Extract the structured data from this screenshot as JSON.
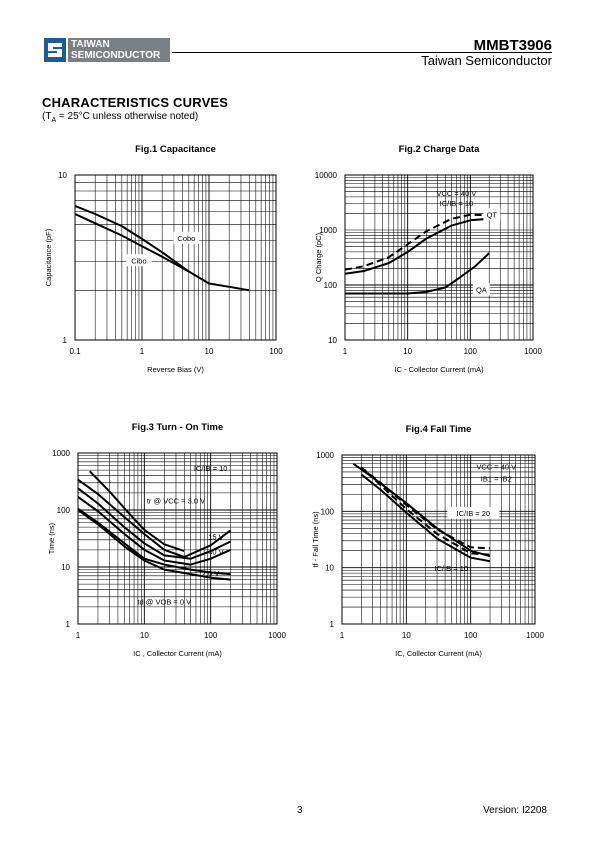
{
  "header": {
    "logo_line1": "TAIWAN",
    "logo_line2": "SEMICONDUCTOR",
    "part_number": "MMBT3906",
    "company": "Taiwan Semiconductor"
  },
  "section": {
    "title": "CHARACTERISTICS CURVES",
    "conditions_prefix": "(T",
    "conditions_sub": "A",
    "conditions_suffix": " = 25°C unless otherwise noted)"
  },
  "footer": {
    "page_number": "3",
    "version": "Version: I2208"
  },
  "chart_data": [
    {
      "id": "fig1",
      "type": "line",
      "title": "Fig.1 Capacitance",
      "xlabel": "Reverse Bias (V)",
      "ylabel": "Capacitance (pF)",
      "xscale": "log",
      "yscale": "log",
      "xlim": [
        0.1,
        100
      ],
      "ylim": [
        1,
        10
      ],
      "xticks": [
        0.1,
        1,
        10,
        100
      ],
      "xtick_labels": [
        "0.1",
        "1",
        "10",
        "100"
      ],
      "yticks": [
        1,
        10
      ],
      "ytick_labels": [
        "1",
        "10"
      ],
      "grid": true,
      "series": [
        {
          "name": "Cobo",
          "style": "solid",
          "x": [
            0.1,
            0.2,
            0.5,
            1,
            2,
            5,
            10,
            20,
            40
          ],
          "y": [
            6.5,
            5.8,
            4.9,
            4.1,
            3.4,
            2.6,
            2.2,
            2.1,
            2.0
          ]
        },
        {
          "name": "Cibo",
          "style": "solid",
          "x": [
            0.1,
            0.2,
            0.5,
            1,
            2,
            5
          ],
          "y": [
            5.8,
            5.1,
            4.3,
            3.7,
            3.2,
            2.6
          ]
        }
      ],
      "annotations": [
        {
          "text": "Cobo",
          "x": 4.6,
          "y": 4.1,
          "box": true
        },
        {
          "text": "Cibo",
          "x": 0.9,
          "y": 3.0,
          "box": true
        }
      ]
    },
    {
      "id": "fig2",
      "type": "line",
      "title": "Fig.2 Charge Data",
      "xlabel": "IC - Collector Current (mA)",
      "ylabel": "Q Charge (pC)",
      "xscale": "log",
      "yscale": "log",
      "xlim": [
        1,
        1000
      ],
      "ylim": [
        10,
        10000
      ],
      "xticks": [
        1,
        10,
        100,
        1000
      ],
      "xtick_labels": [
        "1",
        "10",
        "100",
        "1000"
      ],
      "yticks": [
        10,
        100,
        1000,
        10000
      ],
      "ytick_labels": [
        "10",
        "100",
        "1000",
        "10000"
      ],
      "grid": true,
      "series": [
        {
          "name": "QT",
          "style": "solid",
          "x": [
            1,
            2,
            5,
            10,
            20,
            50,
            100,
            200
          ],
          "y": [
            160,
            180,
            250,
            400,
            700,
            1200,
            1500,
            1600
          ]
        },
        {
          "name": "QT",
          "style": "dashed",
          "x": [
            1,
            2,
            5,
            10,
            20,
            50,
            100,
            200
          ],
          "y": [
            190,
            220,
            320,
            550,
            950,
            1600,
            1900,
            1850
          ]
        },
        {
          "name": "QA",
          "style": "solid",
          "x": [
            1,
            5,
            10,
            20,
            40,
            70,
            120,
            200
          ],
          "y": [
            70,
            70,
            70,
            75,
            90,
            140,
            220,
            380
          ]
        }
      ],
      "annotations": [
        {
          "text": "VCC = 40 V",
          "x": 60,
          "y": 4500
        },
        {
          "text": "IC/IB = 10",
          "x": 60,
          "y": 3000
        },
        {
          "text": "QT",
          "x": 220,
          "y": 1850,
          "box": true
        },
        {
          "text": "QA",
          "x": 150,
          "y": 80,
          "box": true
        }
      ]
    },
    {
      "id": "fig3",
      "type": "line",
      "title": "Fig.3 Turn - On Time",
      "xlabel": "IC , Collector Current (mA)",
      "ylabel": "Time (ns)",
      "xscale": "log",
      "yscale": "log",
      "xlim": [
        1,
        1000
      ],
      "ylim": [
        1,
        1000
      ],
      "xticks": [
        1,
        10,
        100,
        1000
      ],
      "xtick_labels": [
        "1",
        "10",
        "100",
        "1000"
      ],
      "yticks": [
        1,
        10,
        100,
        1000
      ],
      "ytick_labels": [
        "1",
        "10",
        "100",
        "1000"
      ],
      "grid": true,
      "series": [
        {
          "name": "IC/IB = 10",
          "style": "solid",
          "x": [
            1.5,
            3,
            6,
            10,
            20,
            40
          ],
          "y": [
            480,
            210,
            85,
            45,
            25,
            19
          ]
        },
        {
          "name": "tr @ VCC = 3.0 V",
          "style": "solid",
          "x": [
            1,
            2,
            5,
            10,
            20,
            40,
            100,
            200
          ],
          "y": [
            340,
            190,
            75,
            38,
            20,
            15,
            24,
            44
          ]
        },
        {
          "name": "15 V",
          "style": "solid",
          "x": [
            1,
            2,
            5,
            10,
            20,
            50,
            100,
            200
          ],
          "y": [
            240,
            130,
            50,
            26,
            16,
            14,
            19,
            28
          ]
        },
        {
          "name": "40 V",
          "style": "solid",
          "x": [
            1,
            2,
            5,
            10,
            20,
            50,
            100,
            200
          ],
          "y": [
            170,
            95,
            38,
            20,
            13,
            11,
            14,
            20
          ]
        },
        {
          "name": "2.0 V",
          "style": "solid",
          "x": [
            1,
            2,
            5,
            10,
            20,
            50,
            100,
            200
          ],
          "y": [
            100,
            56,
            23,
            13,
            9,
            7.5,
            6.5,
            6
          ]
        },
        {
          "name": "td @ VOB = 0 V",
          "style": "solid",
          "x": [
            1,
            2,
            5,
            10,
            20,
            50,
            100,
            200
          ],
          "y": [
            105,
            60,
            26,
            14,
            11,
            9,
            8,
            7.5
          ]
        }
      ],
      "annotations": [
        {
          "text": "IC/IB = 10",
          "x": 100,
          "y": 520
        },
        {
          "text": "tr @ VCC = 3.0 V",
          "x": 30,
          "y": 140
        },
        {
          "text": "15 V",
          "x": 120,
          "y": 33
        },
        {
          "text": "40 V",
          "x": 120,
          "y": 18
        },
        {
          "text": "2.0 V",
          "x": 100,
          "y": 7.5
        },
        {
          "text": "td @ VOB = 0 V",
          "x": 20,
          "y": 2.4
        }
      ]
    },
    {
      "id": "fig4",
      "type": "line",
      "title": "Fig.4 Fall Time",
      "xlabel": "IC, Collector Current (mA)",
      "ylabel": "tf - Fall Time (ns)",
      "xscale": "log",
      "yscale": "log",
      "xlim": [
        1,
        1000
      ],
      "ylim": [
        1,
        1000
      ],
      "xticks": [
        1,
        10,
        100,
        1000
      ],
      "xtick_labels": [
        "1",
        "10",
        "100",
        "1000"
      ],
      "yticks": [
        1,
        10,
        100,
        1000
      ],
      "ytick_labels": [
        "1",
        "10",
        "100",
        "1000"
      ],
      "grid": true,
      "series": [
        {
          "name": "IC/IB = 20",
          "style": "solid",
          "x": [
            1.5,
            3,
            10,
            30,
            100,
            200
          ],
          "y": [
            700,
            400,
            140,
            50,
            20,
            16
          ]
        },
        {
          "name": "IC/IB = 20",
          "style": "dashed",
          "x": [
            2,
            4,
            10,
            30,
            100,
            200
          ],
          "y": [
            600,
            320,
            130,
            48,
            23,
            22
          ]
        },
        {
          "name": "IC/IB = 10",
          "style": "solid",
          "x": [
            2,
            4,
            10,
            30,
            100,
            200
          ],
          "y": [
            450,
            240,
            95,
            33,
            15,
            13
          ]
        },
        {
          "name": "IC/IB = 10",
          "style": "dashed",
          "x": [
            2.5,
            5,
            10,
            30,
            100,
            200
          ],
          "y": [
            480,
            230,
            110,
            40,
            18,
            17
          ]
        }
      ],
      "annotations": [
        {
          "text": "VCC = 40 V",
          "x": 250,
          "y": 600
        },
        {
          "text": "IB1 = IB2",
          "x": 250,
          "y": 370
        },
        {
          "text": "IC/IB = 20",
          "x": 110,
          "y": 90,
          "box": true
        },
        {
          "text": "IC/IB = 10",
          "x": 50,
          "y": 9.5
        }
      ]
    }
  ]
}
